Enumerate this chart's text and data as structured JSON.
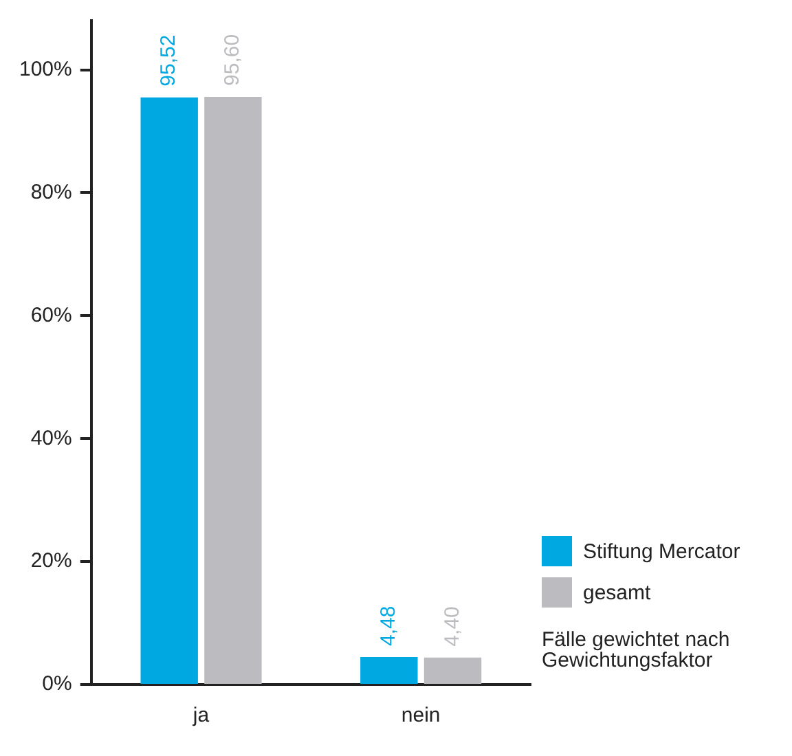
{
  "chart_data": {
    "type": "bar",
    "categories": [
      "ja",
      "nein"
    ],
    "series": [
      {
        "name": "Stiftung Mercator",
        "color": "#00a8e1",
        "values": [
          95.52,
          4.48
        ],
        "value_labels": [
          "95,52",
          "4,48"
        ]
      },
      {
        "name": "gesamt",
        "color": "#bcbcc0",
        "values": [
          95.6,
          4.4
        ],
        "value_labels": [
          "95,60",
          "4,40"
        ]
      }
    ],
    "ylim": [
      0,
      108
    ],
    "yticks": [
      {
        "value": 0,
        "label": "0%"
      },
      {
        "value": 20,
        "label": "20%"
      },
      {
        "value": 40,
        "label": "40%"
      },
      {
        "value": 60,
        "label": "60%"
      },
      {
        "value": 80,
        "label": "80%"
      },
      {
        "value": 100,
        "label": "100%"
      }
    ],
    "grid": false,
    "legend": "right",
    "annotations": [
      "Fälle gewichtet nach Gewichtungsfaktor"
    ]
  }
}
